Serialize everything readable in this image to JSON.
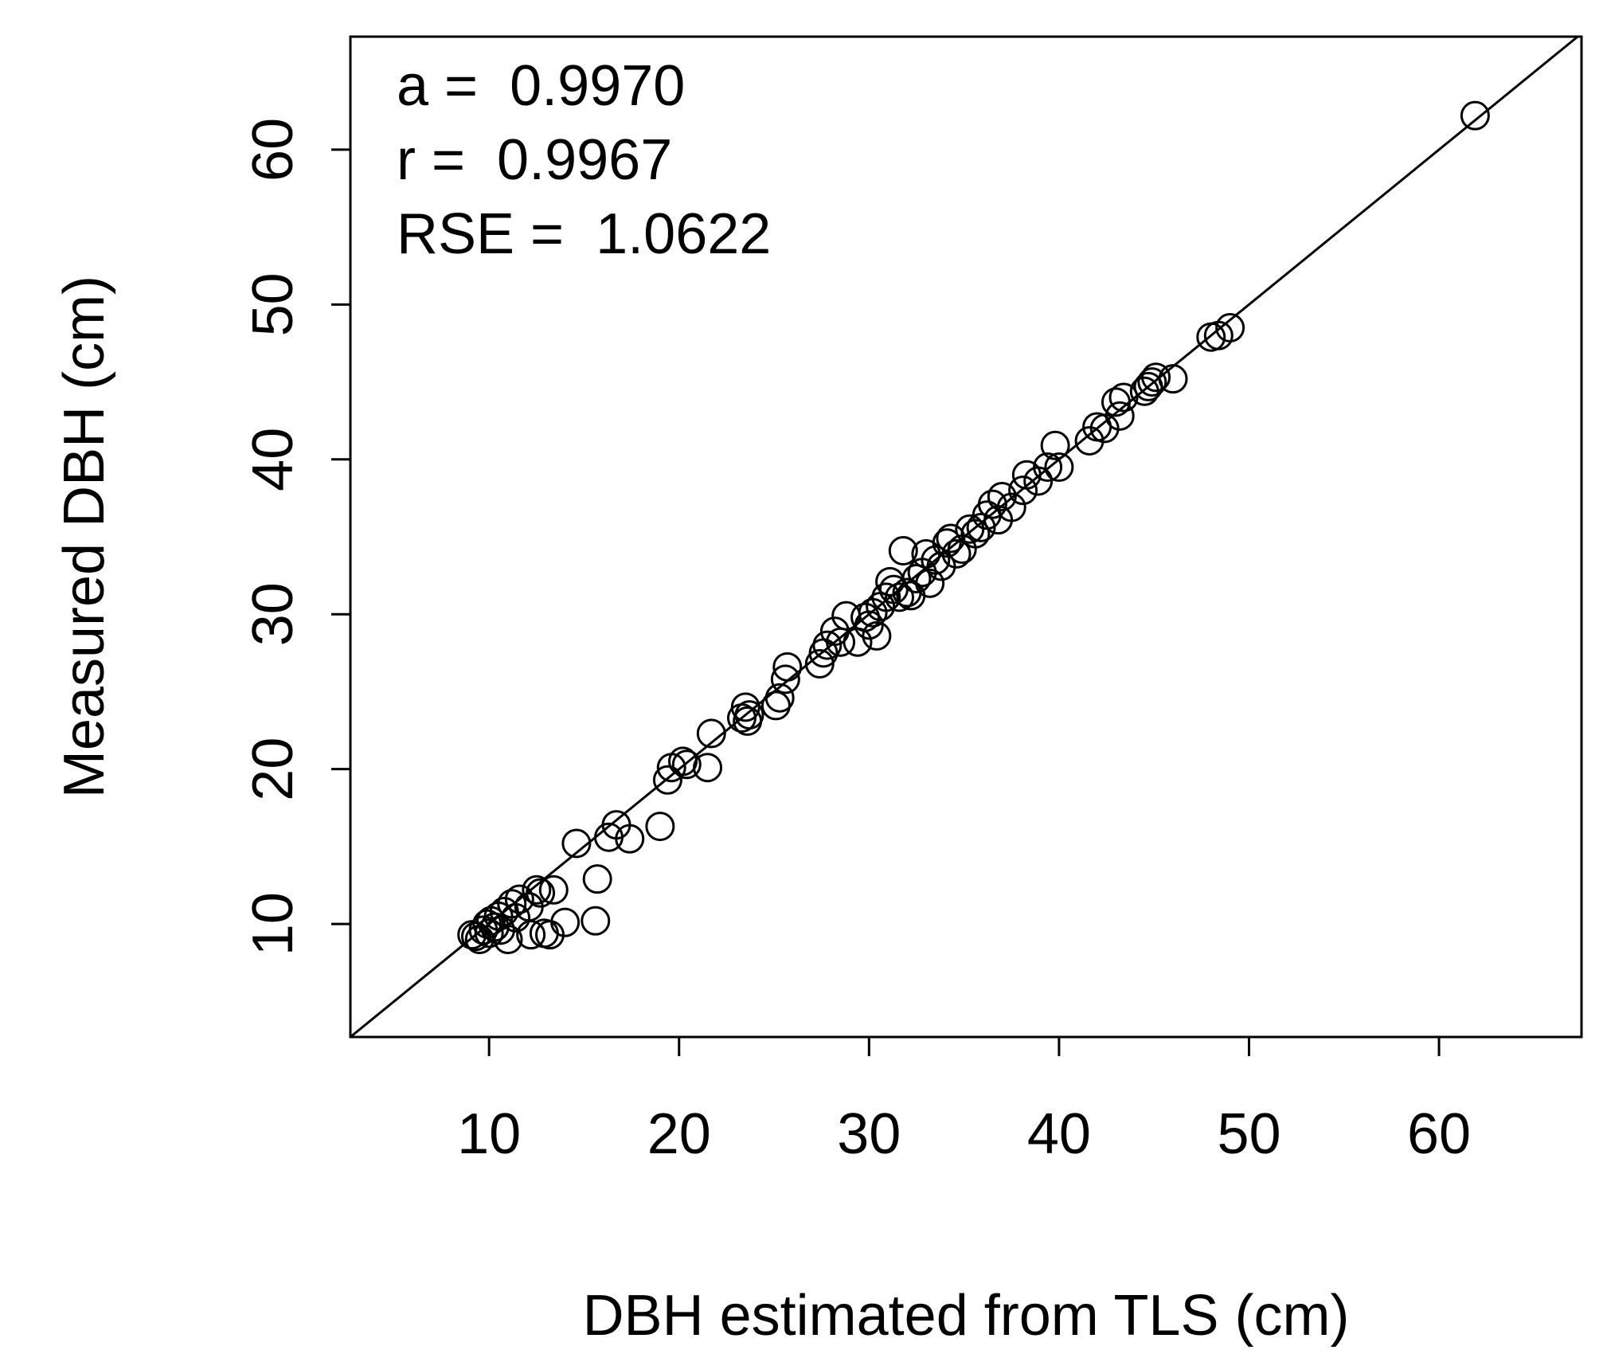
{
  "chart_data": {
    "type": "scatter",
    "title": "",
    "xlabel": "DBH estimated from TLS (cm)",
    "ylabel": "Measured DBH (cm)",
    "xlim": [
      2.7,
      67.5
    ],
    "ylim": [
      2.7,
      67.3
    ],
    "xticks": [
      10,
      20,
      30,
      40,
      50,
      60
    ],
    "yticks": [
      10,
      20,
      30,
      40,
      50,
      60
    ],
    "grid": false,
    "legend": "none",
    "marker": "open-circle",
    "colors": {
      "marker": "#000000",
      "line": "#000000",
      "axes": "#000000"
    },
    "reference_line": {
      "type": "identity",
      "slope": 1,
      "intercept": 0
    },
    "annotations": [
      "a =  0.9970",
      "r =  0.9967",
      "RSE =  1.0622"
    ],
    "points": [
      [
        9.1,
        9.3
      ],
      [
        9.3,
        9.2
      ],
      [
        9.5,
        9.0
      ],
      [
        9.7,
        9.6
      ],
      [
        9.9,
        10.0
      ],
      [
        10.0,
        9.4
      ],
      [
        10.1,
        10.2
      ],
      [
        10.3,
        9.8
      ],
      [
        10.5,
        10.5
      ],
      [
        10.6,
        9.6
      ],
      [
        10.8,
        10.8
      ],
      [
        11.0,
        9.0
      ],
      [
        11.2,
        11.3
      ],
      [
        11.4,
        10.4
      ],
      [
        11.6,
        11.6
      ],
      [
        12.1,
        11.1
      ],
      [
        12.2,
        9.3
      ],
      [
        12.5,
        12.2
      ],
      [
        12.7,
        12.0
      ],
      [
        12.9,
        9.4
      ],
      [
        13.2,
        9.3
      ],
      [
        13.4,
        12.2
      ],
      [
        14.0,
        10.1
      ],
      [
        14.6,
        15.2
      ],
      [
        15.6,
        10.2
      ],
      [
        15.7,
        12.9
      ],
      [
        16.3,
        15.6
      ],
      [
        16.7,
        16.4
      ],
      [
        17.4,
        15.5
      ],
      [
        19.0,
        16.3
      ],
      [
        19.4,
        19.3
      ],
      [
        19.6,
        20.1
      ],
      [
        20.2,
        20.5
      ],
      [
        20.4,
        20.3
      ],
      [
        21.5,
        20.1
      ],
      [
        21.7,
        22.3
      ],
      [
        23.3,
        23.3
      ],
      [
        23.5,
        24.0
      ],
      [
        23.6,
        23.1
      ],
      [
        23.7,
        23.5
      ],
      [
        25.1,
        24.1
      ],
      [
        25.3,
        24.6
      ],
      [
        25.6,
        25.8
      ],
      [
        25.7,
        26.6
      ],
      [
        27.4,
        26.8
      ],
      [
        27.6,
        27.5
      ],
      [
        27.8,
        28.0
      ],
      [
        28.2,
        28.9
      ],
      [
        28.5,
        28.2
      ],
      [
        28.8,
        29.9
      ],
      [
        29.4,
        28.2
      ],
      [
        29.8,
        29.8
      ],
      [
        30.0,
        29.3
      ],
      [
        30.2,
        30.1
      ],
      [
        30.4,
        28.6
      ],
      [
        30.6,
        30.5
      ],
      [
        30.9,
        31.1
      ],
      [
        31.1,
        32.1
      ],
      [
        31.3,
        31.6
      ],
      [
        31.6,
        31.1
      ],
      [
        31.8,
        34.1
      ],
      [
        32.0,
        31.4
      ],
      [
        32.2,
        31.2
      ],
      [
        32.5,
        32.3
      ],
      [
        32.8,
        32.7
      ],
      [
        33.0,
        33.9
      ],
      [
        33.2,
        32.0
      ],
      [
        33.5,
        33.5
      ],
      [
        33.8,
        33.1
      ],
      [
        34.1,
        34.6
      ],
      [
        34.3,
        34.9
      ],
      [
        34.6,
        33.9
      ],
      [
        34.9,
        34.2
      ],
      [
        35.3,
        35.5
      ],
      [
        35.6,
        35.2
      ],
      [
        35.9,
        35.6
      ],
      [
        36.2,
        36.4
      ],
      [
        36.5,
        37.1
      ],
      [
        36.8,
        36.1
      ],
      [
        37.0,
        37.6
      ],
      [
        37.5,
        36.9
      ],
      [
        38.1,
        38.0
      ],
      [
        38.3,
        39.0
      ],
      [
        38.9,
        38.6
      ],
      [
        39.4,
        39.5
      ],
      [
        39.8,
        40.9
      ],
      [
        40.0,
        39.5
      ],
      [
        41.6,
        41.2
      ],
      [
        42.0,
        42.1
      ],
      [
        42.4,
        42.0
      ],
      [
        43.0,
        43.7
      ],
      [
        43.2,
        42.8
      ],
      [
        43.4,
        44.0
      ],
      [
        44.5,
        44.4
      ],
      [
        44.7,
        44.7
      ],
      [
        44.9,
        45.0
      ],
      [
        45.1,
        45.3
      ],
      [
        46.0,
        45.2
      ],
      [
        48.0,
        47.9
      ],
      [
        48.4,
        48.0
      ],
      [
        49.0,
        48.5
      ],
      [
        61.9,
        62.2
      ]
    ]
  }
}
